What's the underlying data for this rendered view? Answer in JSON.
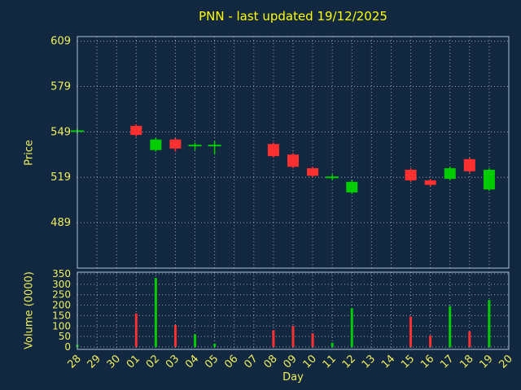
{
  "header": {
    "title": "PNN - last updated 19/12/2025"
  },
  "chart_data": {
    "type": "candlestick",
    "title": "PNN - last updated 19/12/2025",
    "xlabel": "Day",
    "price_ylabel": "Price",
    "volume_ylabel": "Volume (0000)",
    "categories": [
      "28",
      "29",
      "30",
      "01",
      "02",
      "03",
      "04",
      "05",
      "06",
      "07",
      "08",
      "09",
      "10",
      "11",
      "12",
      "13",
      "14",
      "15",
      "16",
      "17",
      "18",
      "19",
      "20"
    ],
    "price_ticks": [
      489,
      519,
      549,
      579,
      609
    ],
    "price_ylim": [
      459,
      612
    ],
    "volume_ticks": [
      0,
      50,
      100,
      150,
      200,
      250,
      300,
      350
    ],
    "volume_ylim": [
      0,
      350
    ],
    "grid": true,
    "colors": {
      "up": "#00cc00",
      "down": "#ff3030",
      "background": "#112840",
      "grid": "#dfe8ef",
      "text": "#f0ef5c",
      "title": "#ffff00",
      "spine": "#b0c4d8"
    },
    "candles": [
      {
        "day": "28",
        "open": 549,
        "high": 551,
        "low": 548,
        "close": 550,
        "volume": 10
      },
      {
        "day": "01",
        "open": 553,
        "high": 554,
        "low": 546,
        "close": 547,
        "volume": 160
      },
      {
        "day": "02",
        "open": 537,
        "high": 545,
        "low": 536,
        "close": 544,
        "volume": 330
      },
      {
        "day": "03",
        "open": 544,
        "high": 545,
        "low": 536,
        "close": 538,
        "volume": 105
      },
      {
        "day": "04",
        "open": 540,
        "high": 542,
        "low": 537,
        "close": 540,
        "volume": 60
      },
      {
        "day": "05",
        "open": 540,
        "high": 543,
        "low": 534,
        "close": 540,
        "volume": 15
      },
      {
        "day": "08",
        "open": 541,
        "high": 542,
        "low": 532,
        "close": 533,
        "volume": 80
      },
      {
        "day": "09",
        "open": 534,
        "high": 535,
        "low": 525,
        "close": 526,
        "volume": 100
      },
      {
        "day": "10",
        "open": 525,
        "high": 526,
        "low": 519,
        "close": 520,
        "volume": 65
      },
      {
        "day": "11",
        "open": 519,
        "high": 521,
        "low": 517,
        "close": 519,
        "volume": 20
      },
      {
        "day": "12",
        "open": 509,
        "high": 517,
        "low": 508,
        "close": 516,
        "volume": 185
      },
      {
        "day": "15",
        "open": 524,
        "high": 525,
        "low": 516,
        "close": 517,
        "volume": 145
      },
      {
        "day": "16",
        "open": 517,
        "high": 518,
        "low": 513,
        "close": 514,
        "volume": 55
      },
      {
        "day": "17",
        "open": 518,
        "high": 526,
        "low": 517,
        "close": 525,
        "volume": 195
      },
      {
        "day": "18",
        "open": 531,
        "high": 532,
        "low": 522,
        "close": 523,
        "volume": 75
      },
      {
        "day": "19",
        "open": 511,
        "high": 525,
        "low": 510,
        "close": 524,
        "volume": 225
      }
    ]
  }
}
